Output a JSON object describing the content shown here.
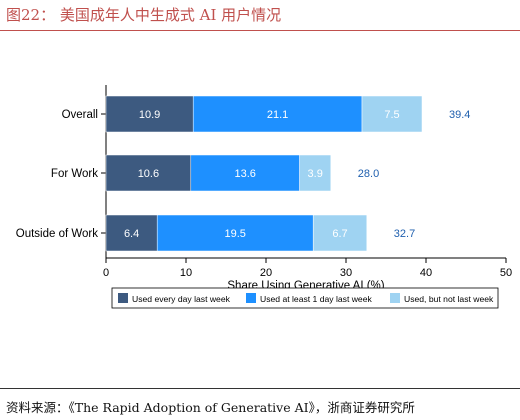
{
  "header": {
    "title": "图22：  美国成年人中生成式 AI 用户情况"
  },
  "footer": {
    "source": "资料来源：《The Rapid Adoption of Generative AI》，浙商证券研究所"
  },
  "colors": {
    "accent": "#c0504d",
    "seg_daily": "#3d5a80",
    "seg_weekly": "#1e90ff",
    "seg_notweekly": "#9fd3f2",
    "total_label": "#1f5fae"
  },
  "chart_data": {
    "type": "bar",
    "orientation": "horizontal",
    "stacked": true,
    "categories": [
      "Overall",
      "For Work",
      "Outside of Work"
    ],
    "series": [
      {
        "name": "Used every day last week",
        "values": [
          10.9,
          10.6,
          6.4
        ]
      },
      {
        "name": "Used at least 1 day last week",
        "values": [
          21.1,
          13.6,
          19.5
        ]
      },
      {
        "name": "Used, but not last week",
        "values": [
          7.5,
          3.9,
          6.7
        ]
      }
    ],
    "totals": [
      39.4,
      28.0,
      32.7
    ],
    "xlabel": "Share Using Generative AI (%)",
    "xlim": [
      0,
      50
    ],
    "xticks": [
      0,
      10,
      20,
      30,
      40,
      50
    ],
    "legend_position": "bottom"
  }
}
